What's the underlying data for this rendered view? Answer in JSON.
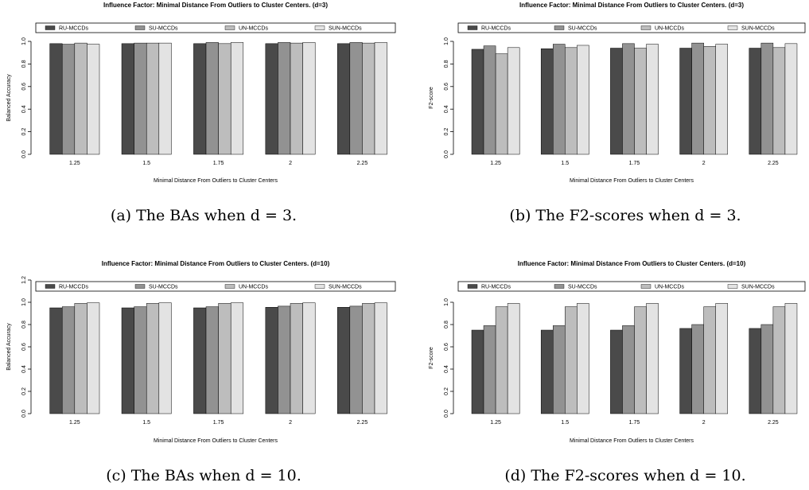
{
  "figure": {
    "captions": [
      "(a) The BAs when d = 3.",
      "(b) The F2-scores when d = 3.",
      "(c) The BAs when d = 10.",
      "(d) The F2-scores when d = 10."
    ]
  },
  "colors": {
    "RU-MCCDs": "#4a4a4a",
    "SU-MCCDs": "#929292",
    "UN-MCCDs": "#bdbdbd",
    "SUN-MCCDs": "#e3e3e3"
  },
  "chart_data": [
    {
      "type": "bar",
      "title": "Influence Factor: Minimal Distance From Outliers to Cluster Centers. (d=3)",
      "xlabel": "Minimal Distance From Outliers to Cluster Centers",
      "ylabel": "Balanced Accuracy",
      "ylim": [
        0,
        1
      ],
      "yticks": [
        "0.0",
        "0.2",
        "0.4",
        "0.6",
        "0.8",
        "1.0"
      ],
      "categories": [
        "1.25",
        "1.5",
        "1.75",
        "2",
        "2.25"
      ],
      "legend_position": "top",
      "grid": false,
      "series": [
        {
          "name": "RU-MCCDs",
          "values": [
            0.98,
            0.98,
            0.98,
            0.98,
            0.98
          ]
        },
        {
          "name": "SU-MCCDs",
          "values": [
            0.975,
            0.985,
            0.99,
            0.99,
            0.99
          ]
        },
        {
          "name": "UN-MCCDs",
          "values": [
            0.985,
            0.985,
            0.98,
            0.985,
            0.985
          ]
        },
        {
          "name": "SUN-MCCDs",
          "values": [
            0.975,
            0.985,
            0.99,
            0.99,
            0.99
          ]
        }
      ]
    },
    {
      "type": "bar",
      "title": "Influence Factor: Minimal Distance From Outliers to Cluster Centers. (d=3)",
      "xlabel": "Minimal Distance From Outliers to Cluster Centers",
      "ylabel": "F2-score",
      "ylim": [
        0,
        1
      ],
      "yticks": [
        "0.0",
        "0.2",
        "0.4",
        "0.6",
        "0.8",
        "1.0"
      ],
      "categories": [
        "1.25",
        "1.5",
        "1.75",
        "2",
        "2.25"
      ],
      "legend_position": "top",
      "grid": false,
      "series": [
        {
          "name": "RU-MCCDs",
          "values": [
            0.93,
            0.935,
            0.94,
            0.94,
            0.94
          ]
        },
        {
          "name": "SU-MCCDs",
          "values": [
            0.96,
            0.975,
            0.98,
            0.985,
            0.985
          ]
        },
        {
          "name": "UN-MCCDs",
          "values": [
            0.89,
            0.945,
            0.94,
            0.955,
            0.945
          ]
        },
        {
          "name": "SUN-MCCDs",
          "values": [
            0.945,
            0.965,
            0.975,
            0.975,
            0.98
          ]
        }
      ]
    },
    {
      "type": "bar",
      "title": "Influence Factor: Minimal Distance From Outliers to Cluster Centers. (d=10)",
      "xlabel": "Minimal Distance From Outliers to Cluster Centers",
      "ylabel": "Balanced Accuracy",
      "ylim": [
        0,
        1.2
      ],
      "yticks": [
        "0.0",
        "0.2",
        "0.4",
        "0.6",
        "0.8",
        "1.0",
        "1.2"
      ],
      "categories": [
        "1.25",
        "1.5",
        "1.75",
        "2",
        "2.25"
      ],
      "legend_position": "top",
      "grid": false,
      "series": [
        {
          "name": "RU-MCCDs",
          "values": [
            0.95,
            0.95,
            0.95,
            0.955,
            0.955
          ]
        },
        {
          "name": "SU-MCCDs",
          "values": [
            0.96,
            0.96,
            0.96,
            0.965,
            0.965
          ]
        },
        {
          "name": "UN-MCCDs",
          "values": [
            0.99,
            0.99,
            0.99,
            0.99,
            0.99
          ]
        },
        {
          "name": "SUN-MCCDs",
          "values": [
            0.995,
            0.995,
            0.995,
            0.995,
            0.995
          ]
        }
      ]
    },
    {
      "type": "bar",
      "title": "Influence Factor: Minimal Distance From Outliers to Cluster Centers. (d=10)",
      "xlabel": "Minimal Distance From Outliers to Cluster Centers",
      "ylabel": "F2-score",
      "ylim": [
        0,
        1
      ],
      "yticks": [
        "0.0",
        "0.2",
        "0.4",
        "0.6",
        "0.8",
        "1.0"
      ],
      "categories": [
        "1.25",
        "1.5",
        "1.75",
        "2",
        "2.25"
      ],
      "legend_position": "top",
      "grid": false,
      "series": [
        {
          "name": "RU-MCCDs",
          "values": [
            0.75,
            0.75,
            0.75,
            0.765,
            0.765
          ]
        },
        {
          "name": "SU-MCCDs",
          "values": [
            0.79,
            0.79,
            0.79,
            0.8,
            0.8
          ]
        },
        {
          "name": "UN-MCCDs",
          "values": [
            0.96,
            0.96,
            0.96,
            0.96,
            0.96
          ]
        },
        {
          "name": "SUN-MCCDs",
          "values": [
            0.99,
            0.99,
            0.99,
            0.99,
            0.99
          ]
        }
      ]
    }
  ]
}
